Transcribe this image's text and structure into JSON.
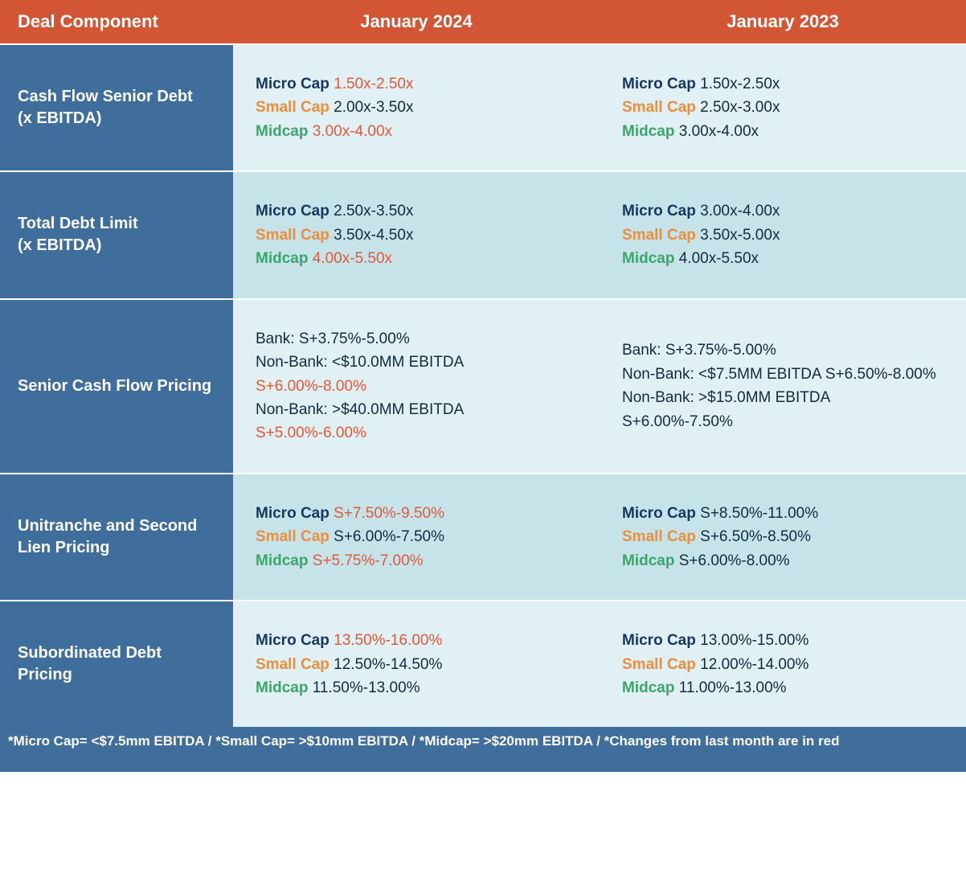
{
  "colors": {
    "header_bg": "#d25633",
    "rowlabel_bg": "#3f6d9c",
    "band_a": "#e0f0f4",
    "band_b": "#c7e3ea",
    "micro": "#17375e",
    "small": "#e98f3e",
    "mid": "#3aa66a",
    "changed": "#e05a3a",
    "body_text": "#142a3d"
  },
  "labels": {
    "micro": "Micro Cap",
    "small": "Small Cap",
    "mid": "Midcap"
  },
  "columns": [
    "Deal Component",
    "January 2024",
    "January 2023"
  ],
  "rows": [
    {
      "label": "Cash Flow Senior Debt\n(x EBITDA)",
      "jan2024": {
        "micro": "1.50x-2.50x",
        "micro_changed": true,
        "small": "2.00x-3.50x",
        "small_changed": false,
        "mid": "3.00x-4.00x",
        "mid_changed": true
      },
      "jan2023": {
        "micro": "1.50x-2.50x",
        "micro_changed": false,
        "small": "2.50x-3.00x",
        "small_changed": false,
        "mid": "3.00x-4.00x",
        "mid_changed": false
      }
    },
    {
      "label": "Total Debt Limit\n(x EBITDA)",
      "jan2024": {
        "micro": "2.50x-3.50x",
        "micro_changed": false,
        "small": "3.50x-4.50x",
        "small_changed": false,
        "mid": "4.00x-5.50x",
        "mid_changed": true
      },
      "jan2023": {
        "micro": "3.00x-4.00x",
        "micro_changed": false,
        "small": "3.50x-5.00x",
        "small_changed": false,
        "mid": "4.00x-5.50x",
        "mid_changed": false
      }
    },
    {
      "label": "Senior Cash Flow Pricing",
      "jan2024_lines": [
        {
          "pre": "Bank: S+3.75%-5.00%"
        },
        {
          "pre": "Non-Bank:  <$10.0MM EBITDA ",
          "val": "S+6.00%-8.00%",
          "changed": true
        },
        {
          "pre": "Non-Bank: >$40.0MM EBITDA ",
          "val": "S+5.00%-6.00%",
          "changed": true
        }
      ],
      "jan2023_lines": [
        {
          "pre": "Bank: S+3.75%-5.00%"
        },
        {
          "pre": "Non-Bank: <$7.5MM EBITDA S+6.50%-8.00%"
        },
        {
          "pre": "Non-Bank: >$15.0MM EBITDA S+6.00%-7.50%"
        }
      ]
    },
    {
      "label": "Unitranche and Second Lien Pricing",
      "jan2024": {
        "micro": "S+7.50%-9.50%",
        "micro_changed": true,
        "small": "S+6.00%-7.50%",
        "small_changed": false,
        "mid": "S+5.75%-7.00%",
        "mid_changed": true
      },
      "jan2023": {
        "micro": "S+8.50%-11.00%",
        "micro_changed": false,
        "small": "S+6.50%-8.50%",
        "small_changed": false,
        "mid": "S+6.00%-8.00%",
        "mid_changed": false
      }
    },
    {
      "label": "Subordinated Debt Pricing",
      "jan2024": {
        "micro": "13.50%-16.00%",
        "micro_changed": true,
        "small": "12.50%-14.50%",
        "small_changed": false,
        "mid": "11.50%-13.00%",
        "mid_changed": false
      },
      "jan2023": {
        "micro": "13.00%-15.00%",
        "micro_changed": false,
        "small": "12.00%-14.00%",
        "small_changed": false,
        "mid": "11.00%-13.00%",
        "mid_changed": false
      }
    }
  ],
  "footnote": "*Micro Cap= <$7.5mm EBITDA / *Small Cap= >$10mm EBITDA / *Midcap= >$20mm EBITDA / *Changes from last month are in red"
}
